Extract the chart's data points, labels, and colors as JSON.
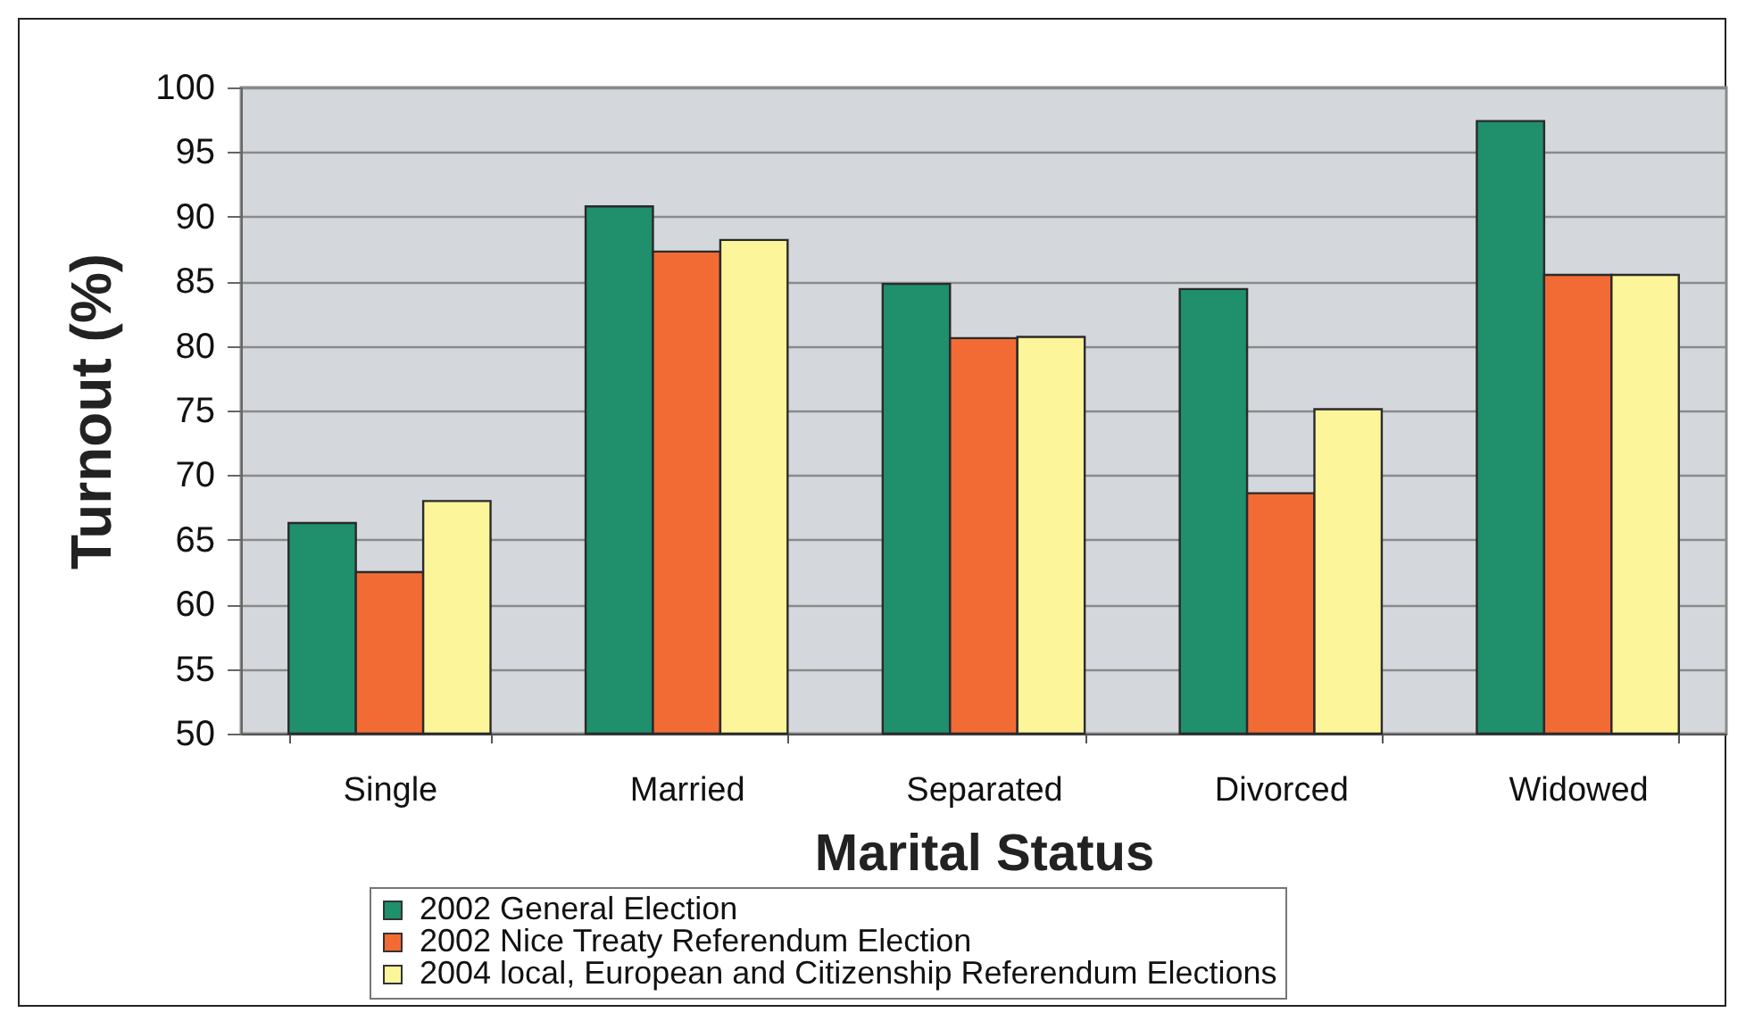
{
  "chart_data": {
    "type": "bar",
    "xlabel": "Marital Status",
    "ylabel": "Turnout (%)",
    "categories": [
      "Single",
      "Married",
      "Separated",
      "Divorced",
      "Widowed"
    ],
    "series": [
      {
        "name": "2002 General Election",
        "color": "#1f8f6c",
        "values": [
          66.3,
          90.8,
          84.8,
          84.4,
          97.4
        ]
      },
      {
        "name": "2002 Nice Treaty Referendum Election",
        "color": "#f26b35",
        "values": [
          62.5,
          87.3,
          80.6,
          68.6,
          85.5
        ]
      },
      {
        "name": "2004 local, European and Citizenship Referendum Elections",
        "color": "#fdf59a",
        "values": [
          68.0,
          88.2,
          80.7,
          75.1,
          85.5
        ]
      }
    ],
    "ylim": [
      50,
      100
    ],
    "yticks": [
      50,
      55,
      60,
      65,
      70,
      75,
      80,
      85,
      90,
      95,
      100
    ],
    "grid": "y",
    "legend": "bottom"
  }
}
